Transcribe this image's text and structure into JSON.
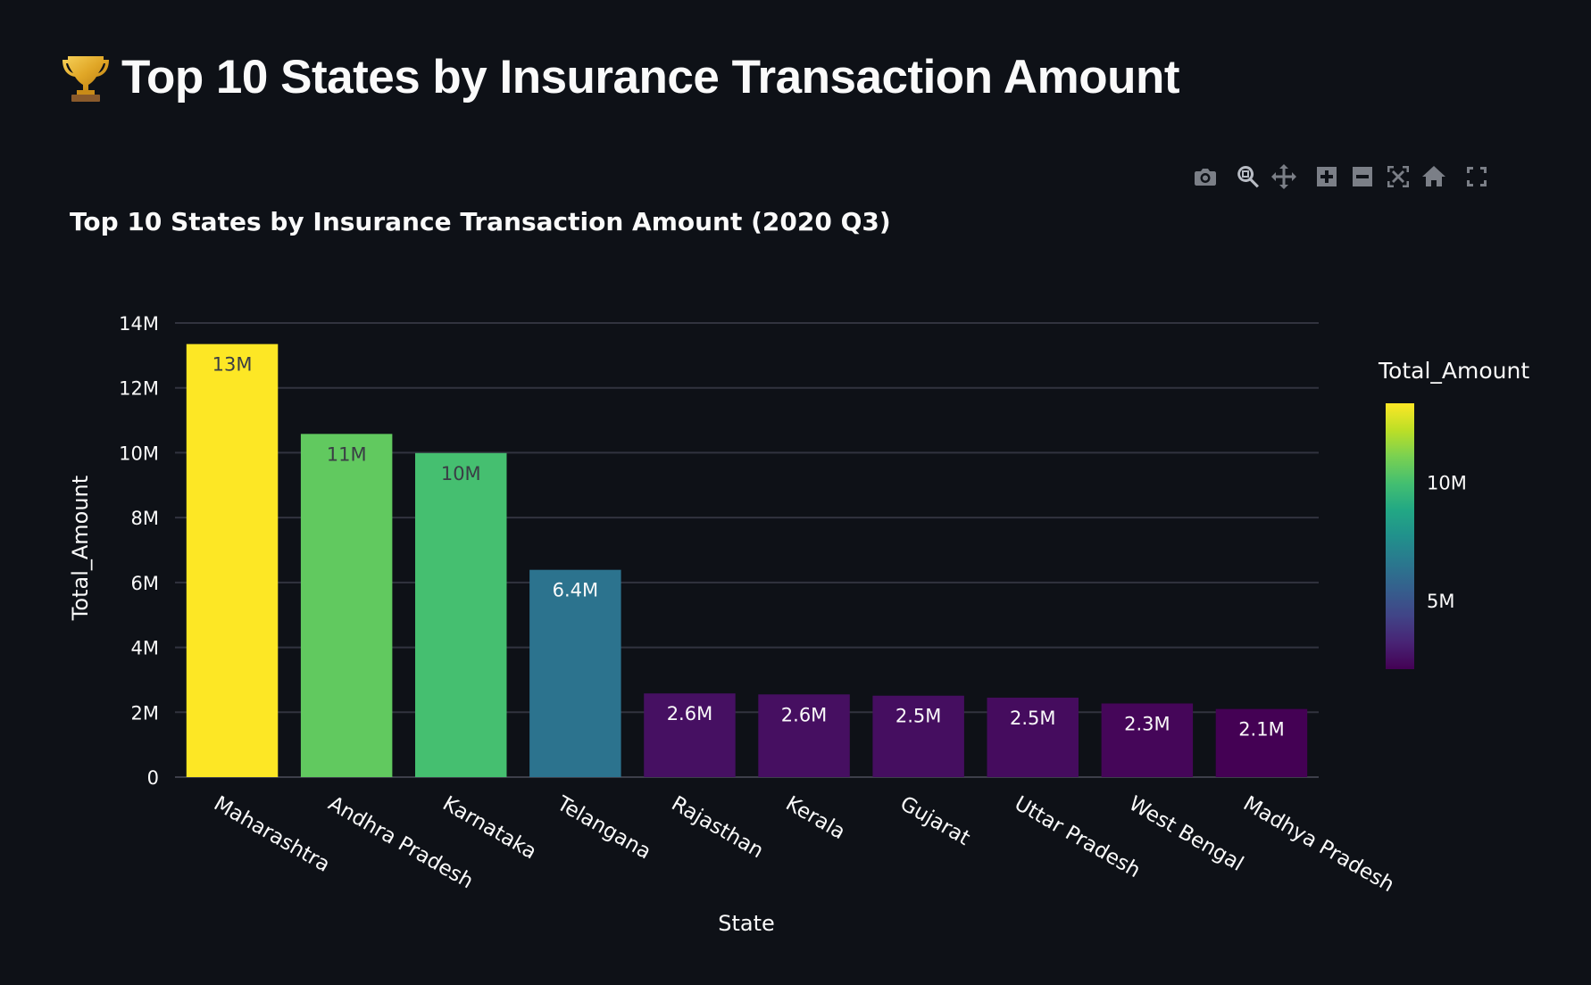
{
  "page": {
    "heading": "Top 10 States by Insurance Transaction Amount",
    "trophy_icon": "trophy-icon"
  },
  "modebar": {
    "buttons": [
      {
        "name": "camera-icon",
        "title": "Download plot as a png"
      },
      {
        "name": "zoom-icon",
        "title": "Zoom"
      },
      {
        "name": "pan-icon",
        "title": "Pan"
      },
      {
        "name": "zoom-in-icon",
        "title": "Zoom in"
      },
      {
        "name": "zoom-out-icon",
        "title": "Zoom out"
      },
      {
        "name": "autoscale-icon",
        "title": "Autoscale"
      },
      {
        "name": "home-icon",
        "title": "Reset axes"
      },
      {
        "name": "fullscreen-icon",
        "title": "Fullscreen"
      }
    ]
  },
  "chart_data": {
    "type": "bar",
    "title": "Top 10 States by Insurance Transaction Amount (2020 Q3)",
    "xlabel": "State",
    "ylabel": "Total_Amount",
    "categories": [
      "Maharashtra",
      "Andhra Pradesh",
      "Karnataka",
      "Telangana",
      "Rajasthan",
      "Kerala",
      "Gujarat",
      "Uttar Pradesh",
      "West Bengal",
      "Madhya Pradesh"
    ],
    "values": [
      13350000,
      10580000,
      9990000,
      6390000,
      2580000,
      2550000,
      2510000,
      2450000,
      2270000,
      2100000
    ],
    "data_labels": [
      "13M",
      "11M",
      "10M",
      "6.4M",
      "2.6M",
      "2.6M",
      "2.5M",
      "2.5M",
      "2.3M",
      "2.1M"
    ],
    "ylim": [
      0,
      14000000
    ],
    "yticks": [
      0,
      2000000,
      4000000,
      6000000,
      8000000,
      10000000,
      12000000,
      14000000
    ],
    "ytick_labels": [
      "0",
      "2M",
      "4M",
      "6M",
      "8M",
      "10M",
      "12M",
      "14M"
    ],
    "grid": true,
    "colorscale": "viridis",
    "colorbar": {
      "title": "Total_Amount",
      "range": [
        2100000,
        13350000
      ],
      "ticks": [
        5000000,
        10000000
      ],
      "tick_labels": [
        "5M",
        "10M"
      ]
    },
    "colors": {
      "background": "#0e1117",
      "grid": "#31333f",
      "text": "#fafafa",
      "dark_label": "#3a3d45"
    }
  }
}
